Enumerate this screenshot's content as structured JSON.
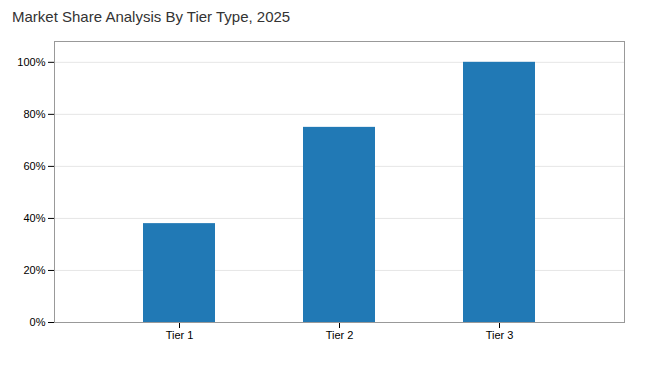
{
  "chart_data": {
    "type": "bar",
    "title": "Market Share Analysis By Tier Type, 2025",
    "categories": [
      "Tier 1",
      "Tier 2",
      "Tier 3"
    ],
    "values": [
      38,
      75,
      100
    ],
    "color": "#2179b5",
    "ylim": [
      0,
      108
    ],
    "yticks": [
      {
        "value": 0,
        "label": "0%"
      },
      {
        "value": 20,
        "label": "20%"
      },
      {
        "value": 40,
        "label": "40%"
      },
      {
        "value": 60,
        "label": "60%"
      },
      {
        "value": 80,
        "label": "80%"
      },
      {
        "value": 100,
        "label": "100%"
      }
    ],
    "grid": true
  }
}
